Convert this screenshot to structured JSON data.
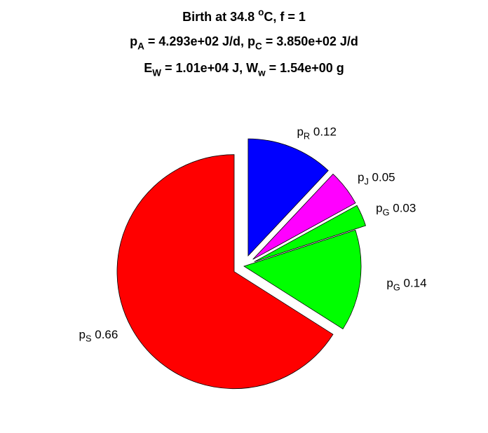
{
  "chart_data": {
    "type": "pie",
    "title": [
      [
        {
          "text": "Birth at 34.8 "
        },
        {
          "sup": "o"
        },
        {
          "text": "C, f = 1"
        }
      ],
      [
        {
          "text": "p"
        },
        {
          "sub": "A"
        },
        {
          "text": " = 4.293e+02 J/d, p"
        },
        {
          "sub": "C"
        },
        {
          "text": " = 3.850e+02 J/d"
        }
      ],
      [
        {
          "text": "E"
        },
        {
          "sub": "W"
        },
        {
          "text": " = 1.01e+04 J, W"
        },
        {
          "sub": "w"
        },
        {
          "text": " = 1.54e+00 g"
        }
      ]
    ],
    "categories": [
      [
        {
          "text": "p"
        },
        {
          "sub": "R"
        }
      ],
      [
        {
          "text": "p"
        },
        {
          "sub": "J"
        }
      ],
      [
        {
          "text": "p"
        },
        {
          "sub": "G"
        }
      ],
      [
        {
          "text": "p"
        },
        {
          "sub": "G"
        }
      ],
      [
        {
          "text": "p"
        },
        {
          "sub": "S"
        }
      ]
    ],
    "values": [
      0.12,
      0.05,
      0.03,
      0.14,
      0.66
    ],
    "colors": [
      "#0000ff",
      "#ff00ff",
      "#00ff00",
      "#00ff00",
      "#ff0000"
    ],
    "explode": [
      true,
      true,
      true,
      false,
      true
    ]
  }
}
